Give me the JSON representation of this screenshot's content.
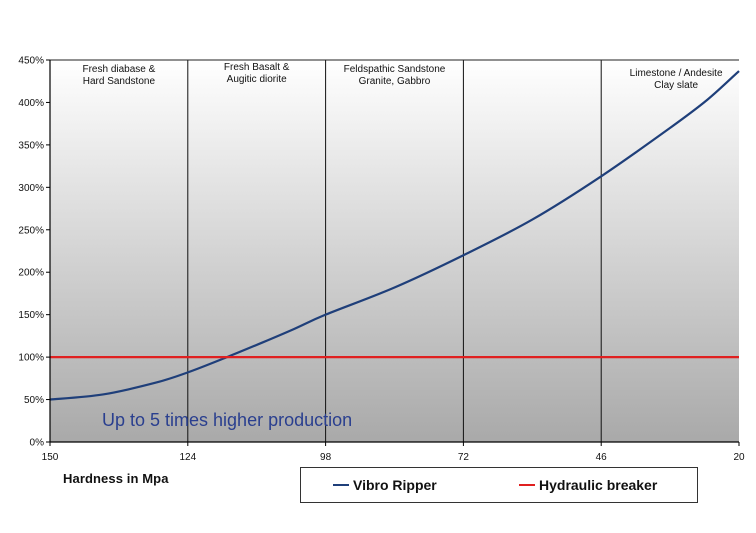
{
  "chart_data": {
    "type": "line",
    "xlabel": "Hardness in Mpa",
    "x_ticks": [
      150,
      124,
      98,
      72,
      46,
      20
    ],
    "y_ticks": [
      "0%",
      "50%",
      "100%",
      "150%",
      "200%",
      "250%",
      "300%",
      "350%",
      "400%",
      "450%"
    ],
    "ylim": [
      0,
      450
    ],
    "xlim": [
      150,
      20
    ],
    "x_reversed": true,
    "grid": "vertical lines at x ticks",
    "background": "vertical gradient white to grey",
    "regions": [
      {
        "lines": [
          "Fresh diabase &",
          "Hard Sandstone"
        ]
      },
      {
        "lines": [
          "Fresh Basalt &",
          "Augitic diorite"
        ]
      },
      {
        "lines": [
          "Feldspathic Sandstone",
          "Granite, Gabbro"
        ]
      },
      {
        "lines": [
          "Limestone / Andesite",
          "Clay slate"
        ]
      }
    ],
    "annotation": "Up to 5 times higher production",
    "series": [
      {
        "name": "Vibro Ripper",
        "color": "#1f3f7a",
        "x": [
          150,
          140,
          130,
          124,
          117,
          110,
          104,
          98,
          85,
          72,
          59,
          46,
          33,
          26,
          20
        ],
        "y": [
          50,
          56,
          70,
          82,
          99,
          117,
          133,
          150,
          182,
          220,
          262,
          313,
          370,
          403,
          437
        ]
      },
      {
        "name": "Hydraulic breaker",
        "color": "#e02020",
        "x": [
          150,
          20
        ],
        "y": [
          100,
          100
        ]
      }
    ],
    "legend_position": "bottom-right"
  }
}
